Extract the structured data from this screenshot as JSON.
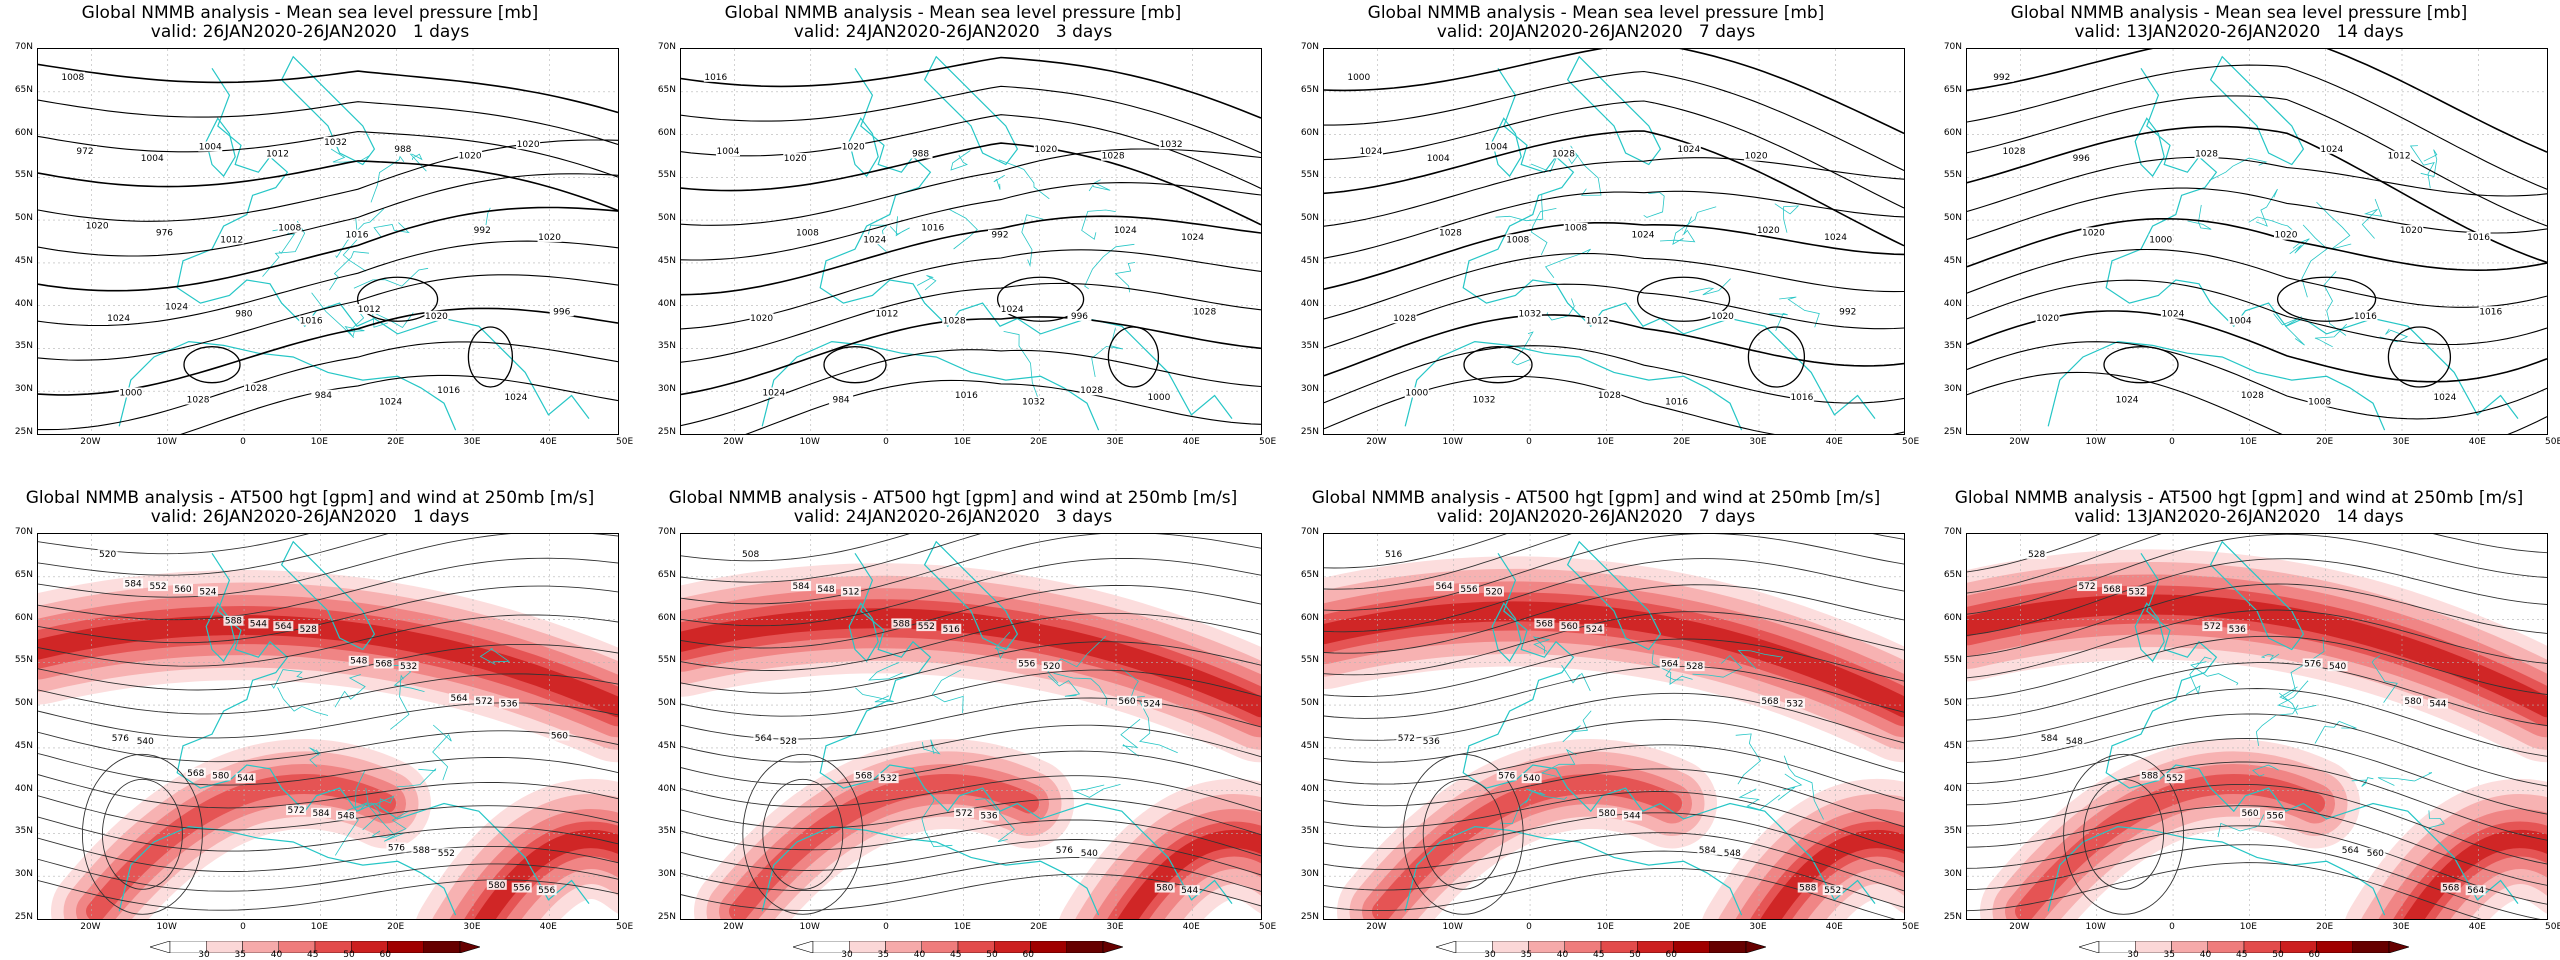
{
  "panels_top": [
    {
      "line1": "Global NMMB analysis - Mean sea level pressure [mb]",
      "line2": "valid: 26JAN2020-26JAN2020   1 days",
      "labels": [
        "1008",
        "1004",
        "1012",
        "1016",
        "1024",
        "1020",
        "1020",
        "1024",
        "1028",
        "1012",
        "1016",
        "1020",
        "1024",
        "972",
        "976",
        "980",
        "984",
        "988",
        "992",
        "996",
        "1000",
        "1004",
        "1008",
        "1012",
        "1016",
        "1020",
        "1020",
        "1024",
        "1028",
        "1032"
      ]
    },
    {
      "line1": "Global NMMB analysis - Mean sea level pressure [mb]",
      "line2": "valid: 24JAN2020-26JAN2020   3 days",
      "labels": [
        "1016",
        "1020",
        "1024",
        "1028",
        "1032",
        "1028",
        "1024",
        "1020",
        "984",
        "988",
        "992",
        "996",
        "1000",
        "1004",
        "1008",
        "1012",
        "1016",
        "1020",
        "1024",
        "1028",
        "1024",
        "1020",
        "1016",
        "1024",
        "1028",
        "1032"
      ]
    },
    {
      "line1": "Global NMMB analysis - Mean sea level pressure [mb]",
      "line2": "valid: 20JAN2020-26JAN2020   7 days",
      "labels": [
        "1000",
        "1004",
        "1008",
        "1012",
        "1016",
        "1020",
        "1024",
        "1028",
        "1032",
        "1028",
        "1024",
        "1020",
        "1016",
        "1024",
        "1028",
        "1032",
        "1028",
        "1024",
        "1020",
        "992",
        "1000",
        "1004",
        "1008"
      ]
    },
    {
      "line1": "Global NMMB analysis - Mean sea level pressure [mb]",
      "line2": "valid: 13JAN2020-26JAN2020   14 days",
      "labels": [
        "992",
        "996",
        "1000",
        "1004",
        "1008",
        "1012",
        "1016",
        "1020",
        "1024",
        "1028",
        "1020",
        "1016",
        "1024",
        "1028",
        "1020",
        "1024",
        "1028",
        "1024",
        "1020",
        "1016"
      ]
    }
  ],
  "panels_bottom": [
    {
      "line1": "Global NMMB analysis - AT500 hgt [gpm] and wind at 250mb [m/s]",
      "line2": "valid: 26JAN2020-26JAN2020   1 days",
      "labels": [
        "520",
        "524",
        "528",
        "532",
        "536",
        "540",
        "544",
        "548",
        "552",
        "556",
        "560",
        "564",
        "568",
        "572",
        "576",
        "580",
        "584",
        "588",
        "556",
        "552",
        "544",
        "548",
        "564",
        "560",
        "568",
        "572",
        "576",
        "580",
        "584",
        "588"
      ]
    },
    {
      "line1": "Global NMMB analysis - AT500 hgt [gpm] and wind at 250mb [m/s]",
      "line2": "valid: 24JAN2020-26JAN2020   3 days",
      "labels": [
        "508",
        "512",
        "516",
        "520",
        "524",
        "528",
        "532",
        "536",
        "540",
        "544",
        "548",
        "552",
        "556",
        "560",
        "564",
        "568",
        "572",
        "576",
        "580",
        "584",
        "588"
      ]
    },
    {
      "line1": "Global NMMB analysis - AT500 hgt [gpm] and wind at 250mb [m/s]",
      "line2": "valid: 20JAN2020-26JAN2020   7 days",
      "labels": [
        "516",
        "520",
        "524",
        "528",
        "532",
        "536",
        "540",
        "544",
        "548",
        "552",
        "556",
        "560",
        "564",
        "568",
        "572",
        "576",
        "580",
        "584",
        "588",
        "564",
        "568"
      ]
    },
    {
      "line1": "Global NMMB analysis - AT500 hgt [gpm] and wind at 250mb [m/s]",
      "line2": "valid: 13JAN2020-26JAN2020   14 days",
      "labels": [
        "528",
        "532",
        "536",
        "540",
        "544",
        "548",
        "552",
        "556",
        "560",
        "564",
        "568",
        "572",
        "576",
        "580",
        "584",
        "588",
        "560",
        "564",
        "568",
        "572"
      ]
    }
  ],
  "lat_labels": [
    "70N",
    "65N",
    "60N",
    "55N",
    "50N",
    "45N",
    "40N",
    "35N",
    "30N",
    "25N"
  ],
  "lon_labels": [
    "20W",
    "10W",
    "0",
    "10E",
    "20E",
    "30E",
    "40E",
    "50E"
  ],
  "colorbar": {
    "ticks": [
      "30",
      "35",
      "40",
      "45",
      "50",
      "60"
    ],
    "colors": [
      "#ffffff",
      "#fbd7d7",
      "#f6aaaa",
      "#ef7c7c",
      "#e34b4b",
      "#cc1f1f",
      "#a00000",
      "#660000"
    ]
  },
  "colors": {
    "contour": "#000000",
    "coast": "#26c6c6",
    "grid": "#b4b4b4"
  }
}
